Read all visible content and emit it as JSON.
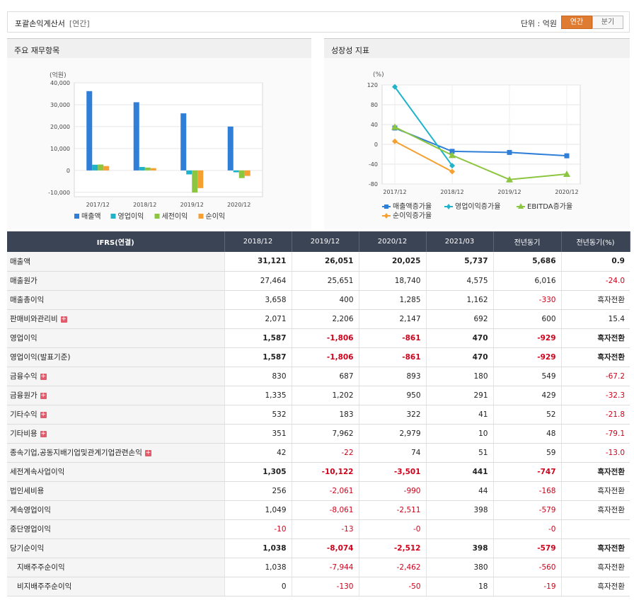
{
  "header": {
    "title": "포괄손익계산서",
    "subtitle": "[연간]",
    "unit": "단위 : 억원",
    "toggle": [
      "연간",
      "분기"
    ]
  },
  "panels": {
    "left_title": "주요 재무항목",
    "right_title": "성장성 지표"
  },
  "chart_data": [
    {
      "type": "bar",
      "ylabel": "(억원)",
      "ylim": [
        -12000,
        40000
      ],
      "yticks": [
        "40,000",
        "30,000",
        "20,000",
        "10,000",
        "0",
        "-10,000"
      ],
      "categories": [
        "2017/12",
        "2018/12",
        "2019/12",
        "2020/12"
      ],
      "series": [
        {
          "name": "매출액",
          "color": "#2f7fd8",
          "values": [
            36200,
            31121,
            26051,
            20025
          ]
        },
        {
          "name": "영업이익",
          "color": "#1fb3c9",
          "values": [
            2600,
            1587,
            -1806,
            -861
          ]
        },
        {
          "name": "세전이익",
          "color": "#8cc53f",
          "values": [
            2700,
            1305,
            -10122,
            -3501
          ]
        },
        {
          "name": "순이익",
          "color": "#f5a030",
          "values": [
            2000,
            1038,
            -8074,
            -2512
          ]
        }
      ]
    },
    {
      "type": "line",
      "ylabel": "(%)",
      "ylim": [
        -80,
        120
      ],
      "yticks": [
        "120",
        "80",
        "40",
        "0",
        "-40",
        "-80"
      ],
      "categories": [
        "2017/12",
        "2018/12",
        "2019/12",
        "2020/12"
      ],
      "series": [
        {
          "name": "매출액증가율",
          "color": "#2f7fd8",
          "marker": "square",
          "values": [
            33,
            -14.1,
            -16.3,
            -23.1
          ]
        },
        {
          "name": "영업이익증가율",
          "color": "#1fb3c9",
          "marker": "diamond",
          "values": [
            116,
            -43,
            null,
            null
          ]
        },
        {
          "name": "EBITDA증가율",
          "color": "#8cc53f",
          "marker": "triangle",
          "values": [
            35,
            -22,
            -71,
            -60
          ]
        },
        {
          "name": "순이익증가율",
          "color": "#f5a030",
          "marker": "diamond",
          "values": [
            6,
            -55,
            null,
            null
          ]
        }
      ]
    }
  ],
  "table": {
    "headers": [
      "IFRS(연결)",
      "2018/12",
      "2019/12",
      "2020/12",
      "2021/03",
      "전년동기",
      "전년동기(%)"
    ],
    "rows": [
      {
        "label": "매출액",
        "bold": true,
        "plus": false,
        "indent": false,
        "cells": [
          "31,121",
          "26,051",
          "20,025",
          "5,737",
          "5,686",
          "0.9"
        ]
      },
      {
        "label": "매출원가",
        "bold": false,
        "plus": false,
        "indent": false,
        "cells": [
          "27,464",
          "25,651",
          "18,740",
          "4,575",
          "6,016",
          "-24.0"
        ]
      },
      {
        "label": "매출총이익",
        "bold": false,
        "plus": false,
        "indent": false,
        "cells": [
          "3,658",
          "400",
          "1,285",
          "1,162",
          "-330",
          "흑자전환"
        ]
      },
      {
        "label": "판매비와관리비",
        "bold": false,
        "plus": true,
        "indent": false,
        "cells": [
          "2,071",
          "2,206",
          "2,147",
          "692",
          "600",
          "15.4"
        ]
      },
      {
        "label": "영업이익",
        "bold": true,
        "plus": false,
        "indent": false,
        "cells": [
          "1,587",
          "-1,806",
          "-861",
          "470",
          "-929",
          "흑자전환"
        ]
      },
      {
        "label": "영업이익(발표기준)",
        "bold": true,
        "plus": false,
        "indent": false,
        "cells": [
          "1,587",
          "-1,806",
          "-861",
          "470",
          "-929",
          "흑자전환"
        ]
      },
      {
        "label": "금융수익",
        "bold": false,
        "plus": true,
        "indent": false,
        "cells": [
          "830",
          "687",
          "893",
          "180",
          "549",
          "-67.2"
        ]
      },
      {
        "label": "금융원가",
        "bold": false,
        "plus": true,
        "indent": false,
        "cells": [
          "1,335",
          "1,202",
          "950",
          "291",
          "429",
          "-32.3"
        ]
      },
      {
        "label": "기타수익",
        "bold": false,
        "plus": true,
        "indent": false,
        "cells": [
          "532",
          "183",
          "322",
          "41",
          "52",
          "-21.8"
        ]
      },
      {
        "label": "기타비용",
        "bold": false,
        "plus": true,
        "indent": false,
        "cells": [
          "351",
          "7,962",
          "2,979",
          "10",
          "48",
          "-79.1"
        ]
      },
      {
        "label": "종속기업,공동지배기업및관계기업관련손익",
        "bold": false,
        "plus": true,
        "indent": false,
        "cells": [
          "42",
          "-22",
          "74",
          "51",
          "59",
          "-13.0"
        ]
      },
      {
        "label": "세전계속사업이익",
        "bold": true,
        "plus": false,
        "indent": false,
        "cells": [
          "1,305",
          "-10,122",
          "-3,501",
          "441",
          "-747",
          "흑자전환"
        ]
      },
      {
        "label": "법인세비용",
        "bold": false,
        "plus": false,
        "indent": false,
        "cells": [
          "256",
          "-2,061",
          "-990",
          "44",
          "-168",
          "흑자전환"
        ]
      },
      {
        "label": "계속영업이익",
        "bold": false,
        "plus": false,
        "indent": false,
        "cells": [
          "1,049",
          "-8,061",
          "-2,511",
          "398",
          "-579",
          "흑자전환"
        ]
      },
      {
        "label": "중단영업이익",
        "bold": false,
        "plus": false,
        "indent": false,
        "cells": [
          "-10",
          "-13",
          "-0",
          "",
          "-0",
          ""
        ]
      },
      {
        "label": "당기순이익",
        "bold": true,
        "plus": false,
        "indent": false,
        "cells": [
          "1,038",
          "-8,074",
          "-2,512",
          "398",
          "-579",
          "흑자전환"
        ]
      },
      {
        "label": "지배주주순이익",
        "bold": false,
        "plus": false,
        "indent": true,
        "cells": [
          "1,038",
          "-7,944",
          "-2,462",
          "380",
          "-560",
          "흑자전환"
        ]
      },
      {
        "label": "비지배주주순이익",
        "bold": false,
        "plus": false,
        "indent": true,
        "cells": [
          "0",
          "-130",
          "-50",
          "18",
          "-19",
          "흑자전환"
        ]
      }
    ]
  }
}
